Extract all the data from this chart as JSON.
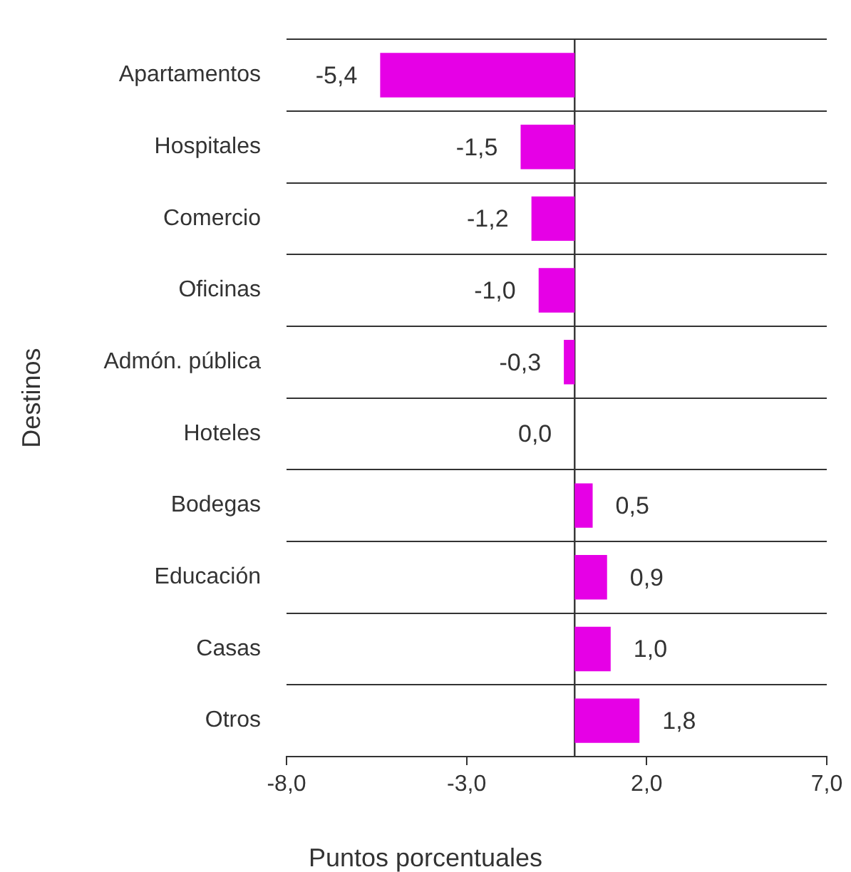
{
  "chart_data": {
    "type": "bar",
    "orientation": "horizontal",
    "categories": [
      "Apartamentos",
      "Hospitales",
      "Comercio",
      "Oficinas",
      "Admón. pública",
      "Hoteles",
      "Bodegas",
      "Educación",
      "Casas",
      "Otros"
    ],
    "values": [
      -5.4,
      -1.5,
      -1.2,
      -1.0,
      -0.3,
      0.0,
      0.5,
      0.9,
      1.0,
      1.8
    ],
    "value_labels": [
      "-5,4",
      "-1,5",
      "-1,2",
      "-1,0",
      "-0,3",
      "0,0",
      "0,5",
      "0,9",
      "1,0",
      "1,8"
    ],
    "color": "#e600e6",
    "xlim": [
      -8,
      7
    ],
    "xticks": [
      {
        "value": -8,
        "label": "-8,0"
      },
      {
        "value": -3,
        "label": "-3,0"
      },
      {
        "value": 2,
        "label": "2,0"
      },
      {
        "value": 7,
        "label": "7,0"
      }
    ],
    "xlabel": "Puntos porcentuales",
    "ylabel": "Destinos",
    "grid": "y",
    "ref_lines": [
      {
        "axis": "x",
        "value": 0,
        "color": "#333333"
      }
    ]
  }
}
